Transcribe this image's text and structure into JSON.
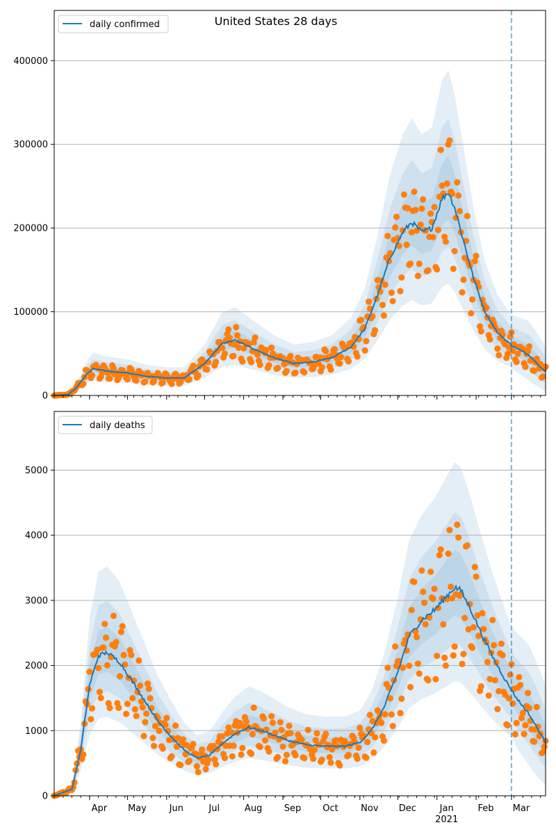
{
  "figure_title": "United States 28 days",
  "colors": {
    "line": "#1f77b4",
    "points": "#ff7f0e",
    "band": "#1f77b4",
    "grid": "#b0b0b0",
    "vline": "#1f77b4"
  },
  "x_axis": {
    "month_labels": [
      "Apr",
      "May",
      "Jun",
      "Jul",
      "Aug",
      "Sep",
      "Oct",
      "Nov",
      "Dec",
      "Jan",
      "Feb",
      "Mar"
    ],
    "month_dates": [
      "2020-04-01",
      "2020-05-01",
      "2020-06-01",
      "2020-07-01",
      "2020-08-01",
      "2020-09-01",
      "2020-10-01",
      "2020-11-01",
      "2020-12-01",
      "2021-01-01",
      "2021-02-01",
      "2021-03-01"
    ],
    "year_label": "2021",
    "range": [
      "2020-03-04",
      "2021-03-28"
    ],
    "vline_date": "2021-03-01"
  },
  "chart_data": [
    {
      "type": "line",
      "legend": "daily confirmed",
      "legend_position": "top-left",
      "grid": "horizontal",
      "ylim": [
        0,
        460000
      ],
      "yticks": [
        0,
        100000,
        200000,
        300000,
        400000
      ],
      "ytick_labels": [
        "0",
        "100000",
        "200000",
        "300000",
        "400000"
      ],
      "series": [
        {
          "name": "daily confirmed",
          "points": [
            {
              "date": "2020-03-04",
              "value": 0
            },
            {
              "date": "2020-03-15",
              "value": 1000
            },
            {
              "date": "2020-03-22",
              "value": 10000
            },
            {
              "date": "2020-03-30",
              "value": 26000
            },
            {
              "date": "2020-04-04",
              "value": 32000
            },
            {
              "date": "2020-04-15",
              "value": 29000
            },
            {
              "date": "2020-05-01",
              "value": 27000
            },
            {
              "date": "2020-05-15",
              "value": 23000
            },
            {
              "date": "2020-06-01",
              "value": 21000
            },
            {
              "date": "2020-06-15",
              "value": 21000
            },
            {
              "date": "2020-07-01",
              "value": 38000
            },
            {
              "date": "2020-07-15",
              "value": 62000
            },
            {
              "date": "2020-07-25",
              "value": 66000
            },
            {
              "date": "2020-08-10",
              "value": 55000
            },
            {
              "date": "2020-08-25",
              "value": 45000
            },
            {
              "date": "2020-09-10",
              "value": 38000
            },
            {
              "date": "2020-09-25",
              "value": 40000
            },
            {
              "date": "2020-10-10",
              "value": 45000
            },
            {
              "date": "2020-10-25",
              "value": 58000
            },
            {
              "date": "2020-11-05",
              "value": 80000
            },
            {
              "date": "2020-11-15",
              "value": 120000
            },
            {
              "date": "2020-11-25",
              "value": 165000
            },
            {
              "date": "2020-12-05",
              "value": 195000
            },
            {
              "date": "2020-12-12",
              "value": 207000
            },
            {
              "date": "2020-12-20",
              "value": 195000
            },
            {
              "date": "2020-12-28",
              "value": 200000
            },
            {
              "date": "2021-01-05",
              "value": 235000
            },
            {
              "date": "2021-01-10",
              "value": 243000
            },
            {
              "date": "2021-01-15",
              "value": 225000
            },
            {
              "date": "2021-01-22",
              "value": 185000
            },
            {
              "date": "2021-01-30",
              "value": 140000
            },
            {
              "date": "2021-02-08",
              "value": 100000
            },
            {
              "date": "2021-02-18",
              "value": 75000
            },
            {
              "date": "2021-03-01",
              "value": 60000
            },
            {
              "date": "2021-03-15",
              "value": 48000
            },
            {
              "date": "2021-03-28",
              "value": 28000
            }
          ]
        }
      ]
    },
    {
      "type": "line",
      "legend": "daily deaths",
      "legend_position": "top-left",
      "grid": "horizontal",
      "ylim": [
        0,
        5900
      ],
      "yticks": [
        0,
        1000,
        2000,
        3000,
        4000,
        5000
      ],
      "ytick_labels": [
        "0",
        "1000",
        "2000",
        "3000",
        "4000",
        "5000"
      ],
      "series": [
        {
          "name": "daily deaths",
          "points": [
            {
              "date": "2020-03-04",
              "value": 0
            },
            {
              "date": "2020-03-18",
              "value": 100
            },
            {
              "date": "2020-03-25",
              "value": 700
            },
            {
              "date": "2020-04-01",
              "value": 1700
            },
            {
              "date": "2020-04-08",
              "value": 2150
            },
            {
              "date": "2020-04-15",
              "value": 2200
            },
            {
              "date": "2020-04-25",
              "value": 2050
            },
            {
              "date": "2020-05-05",
              "value": 1750
            },
            {
              "date": "2020-05-15",
              "value": 1450
            },
            {
              "date": "2020-05-25",
              "value": 1150
            },
            {
              "date": "2020-06-05",
              "value": 900
            },
            {
              "date": "2020-06-15",
              "value": 700
            },
            {
              "date": "2020-06-25",
              "value": 580
            },
            {
              "date": "2020-07-05",
              "value": 620
            },
            {
              "date": "2020-07-15",
              "value": 800
            },
            {
              "date": "2020-07-25",
              "value": 950
            },
            {
              "date": "2020-08-05",
              "value": 1050
            },
            {
              "date": "2020-08-15",
              "value": 1000
            },
            {
              "date": "2020-08-25",
              "value": 930
            },
            {
              "date": "2020-09-05",
              "value": 850
            },
            {
              "date": "2020-09-20",
              "value": 780
            },
            {
              "date": "2020-10-05",
              "value": 760
            },
            {
              "date": "2020-10-20",
              "value": 760
            },
            {
              "date": "2020-11-01",
              "value": 820
            },
            {
              "date": "2020-11-10",
              "value": 1000
            },
            {
              "date": "2020-11-20",
              "value": 1350
            },
            {
              "date": "2020-12-01",
              "value": 1900
            },
            {
              "date": "2020-12-10",
              "value": 2450
            },
            {
              "date": "2020-12-20",
              "value": 2700
            },
            {
              "date": "2020-12-30",
              "value": 2850
            },
            {
              "date": "2021-01-08",
              "value": 3050
            },
            {
              "date": "2021-01-15",
              "value": 3200
            },
            {
              "date": "2021-01-20",
              "value": 3150
            },
            {
              "date": "2021-01-28",
              "value": 2850
            },
            {
              "date": "2021-02-05",
              "value": 2500
            },
            {
              "date": "2021-02-15",
              "value": 2100
            },
            {
              "date": "2021-02-25",
              "value": 1750
            },
            {
              "date": "2021-03-05",
              "value": 1500
            },
            {
              "date": "2021-03-15",
              "value": 1250
            },
            {
              "date": "2021-03-28",
              "value": 820
            }
          ]
        }
      ]
    }
  ]
}
